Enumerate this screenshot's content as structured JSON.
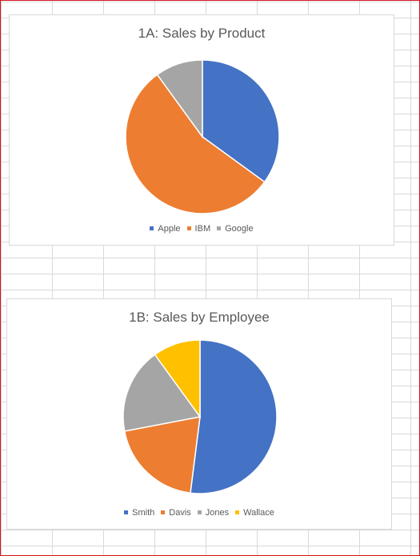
{
  "chart_data": [
    {
      "type": "pie",
      "title": "1A: Sales by Product",
      "categories": [
        "Apple",
        "IBM",
        "Google"
      ],
      "values": [
        35,
        55,
        10
      ],
      "colors": [
        "#4472c4",
        "#ed7d31",
        "#a5a5a5"
      ],
      "legend": "bottom"
    },
    {
      "type": "pie",
      "title": "1B: Sales by Employee",
      "categories": [
        "Smith",
        "Davis",
        "Jones",
        "Wallace"
      ],
      "values": [
        52,
        20,
        18,
        10
      ],
      "colors": [
        "#4472c4",
        "#ed7d31",
        "#a5a5a5",
        "#ffc000"
      ],
      "legend": "bottom"
    }
  ]
}
